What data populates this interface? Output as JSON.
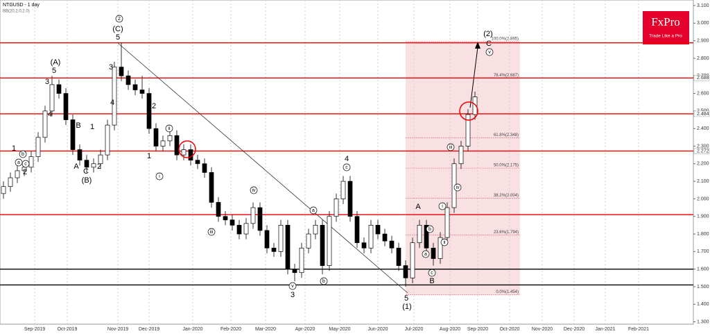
{
  "chart_data": {
    "type": "candlestick",
    "title": "NTGUSD - 1 day",
    "indicator": "BB(20,2.0,2.0)",
    "brand": {
      "name": "FxPro",
      "tagline": "Trade Like a Pro"
    },
    "x_labels": [
      "Sep-2019",
      "Oct-2019",
      "Nov-2019",
      "Dec-2019",
      "Jan-2020",
      "Feb-2020",
      "Mar-2020",
      "Apr-2020",
      "May-2020",
      "Jun-2020",
      "Jul-2020",
      "Aug-2020",
      "Sep-2020",
      "Oct-2020",
      "Nov-2020",
      "Dec-2020",
      "Jan-2021",
      "Feb-2021"
    ],
    "ylim": [
      1.2865,
      3.1317
    ],
    "yticks": [
      {
        "value": 1.3,
        "label": "1.300"
      },
      {
        "value": 1.4,
        "label": "1.400"
      },
      {
        "value": 1.5,
        "label": "1.500"
      },
      {
        "value": 1.6,
        "label": "1.600"
      },
      {
        "value": 1.7,
        "label": "1.700"
      },
      {
        "value": 1.8,
        "label": "1.800"
      },
      {
        "value": 1.9,
        "label": "1.900"
      },
      {
        "value": 2.0,
        "label": "2.000"
      },
      {
        "value": 2.1,
        "label": "2.100"
      },
      {
        "value": 2.2,
        "label": "2.200"
      },
      {
        "value": 2.3,
        "label": "2.300"
      },
      {
        "value": 2.4,
        "label": "2.400"
      },
      {
        "value": 2.5,
        "label": "2.500"
      },
      {
        "value": 2.6,
        "label": "2.600"
      },
      {
        "value": 2.7,
        "label": "2.700"
      },
      {
        "value": 2.8,
        "label": "2.800"
      },
      {
        "value": 2.9,
        "label": "2.900"
      },
      {
        "value": 3.0,
        "label": "3.000"
      },
      {
        "value": 3.1,
        "label": "3.100"
      }
    ],
    "open": [
      2.03,
      2.07,
      2.12,
      2.16,
      2.18,
      2.24,
      2.35,
      2.5,
      2.65,
      2.6,
      2.45,
      2.28,
      2.22,
      2.18,
      2.2,
      2.25,
      2.42,
      2.75,
      2.7,
      2.65,
      2.62,
      2.6,
      2.4,
      2.3,
      2.33,
      2.36,
      2.25,
      2.28,
      2.22,
      2.2,
      2.15,
      1.98,
      1.9,
      1.88,
      1.85,
      1.8,
      1.86,
      1.95,
      1.82,
      1.72,
      1.7,
      1.85,
      1.6,
      1.58,
      1.72,
      1.8,
      1.85,
      1.62,
      1.9,
      2.0,
      2.1,
      1.9,
      1.75,
      1.72,
      1.85,
      1.8,
      1.76,
      1.72,
      1.62,
      1.55,
      1.75,
      1.85,
      1.72,
      1.66,
      1.78,
      1.95,
      2.2,
      2.3,
      2.48
    ],
    "high": [
      2.1,
      2.15,
      2.19,
      2.21,
      2.27,
      2.38,
      2.53,
      2.7,
      2.68,
      2.63,
      2.48,
      2.31,
      2.25,
      2.23,
      2.28,
      2.45,
      2.78,
      2.89,
      2.73,
      2.68,
      2.7,
      2.63,
      2.43,
      2.36,
      2.39,
      2.39,
      2.31,
      2.31,
      2.25,
      2.23,
      2.18,
      2.01,
      1.93,
      1.91,
      1.88,
      1.89,
      1.98,
      1.98,
      1.85,
      1.75,
      1.88,
      1.88,
      1.63,
      1.75,
      1.83,
      1.88,
      1.88,
      1.93,
      2.03,
      2.13,
      2.13,
      1.93,
      1.78,
      1.88,
      1.88,
      1.83,
      1.79,
      1.75,
      1.65,
      1.78,
      1.88,
      1.88,
      1.75,
      1.81,
      1.98,
      2.23,
      2.33,
      2.51,
      2.61
    ],
    "low": [
      2.0,
      2.04,
      2.09,
      2.13,
      2.15,
      2.21,
      2.32,
      2.47,
      2.57,
      2.42,
      2.25,
      2.19,
      2.15,
      2.15,
      2.17,
      2.22,
      2.39,
      2.67,
      2.62,
      2.59,
      2.57,
      2.37,
      2.27,
      2.27,
      2.3,
      2.22,
      2.22,
      2.19,
      2.17,
      2.12,
      1.95,
      1.87,
      1.85,
      1.82,
      1.77,
      1.77,
      1.83,
      1.79,
      1.69,
      1.67,
      1.67,
      1.57,
      1.53,
      1.55,
      1.69,
      1.77,
      1.57,
      1.59,
      1.87,
      1.97,
      1.87,
      1.72,
      1.69,
      1.69,
      1.77,
      1.73,
      1.69,
      1.59,
      1.5,
      1.52,
      1.72,
      1.69,
      1.62,
      1.63,
      1.75,
      1.92,
      2.17,
      2.27,
      2.45
    ],
    "close": [
      2.07,
      2.12,
      2.16,
      2.18,
      2.24,
      2.35,
      2.5,
      2.65,
      2.6,
      2.45,
      2.28,
      2.22,
      2.18,
      2.2,
      2.25,
      2.42,
      2.75,
      2.7,
      2.65,
      2.62,
      2.6,
      2.4,
      2.3,
      2.33,
      2.36,
      2.25,
      2.28,
      2.22,
      2.2,
      2.15,
      1.98,
      1.9,
      1.88,
      1.85,
      1.8,
      1.86,
      1.95,
      1.82,
      1.72,
      1.7,
      1.85,
      1.6,
      1.58,
      1.72,
      1.8,
      1.85,
      1.62,
      1.9,
      2.0,
      2.1,
      1.9,
      1.75,
      1.72,
      1.85,
      1.8,
      1.76,
      1.72,
      1.62,
      1.55,
      1.75,
      1.85,
      1.72,
      1.66,
      1.78,
      1.95,
      2.2,
      2.3,
      2.48,
      2.58
    ],
    "red_levels": [
      2.888,
      2.688,
      2.484,
      2.272,
      1.91
    ],
    "black_levels": [
      1.6,
      1.51
    ],
    "price_tags": [
      2.688,
      2.484,
      2.272
    ],
    "fib_levels": [
      {
        "value": 2.895,
        "label": "100.0%(2.895)"
      },
      {
        "value": 2.687,
        "label": "76.4%(2.687)"
      },
      {
        "value": 2.348,
        "label": "61.8%(2.348)"
      },
      {
        "value": 2.175,
        "label": "50.0%(2.175)"
      },
      {
        "value": 2.004,
        "label": "38.2%(2.004)"
      },
      {
        "value": 1.794,
        "label": "23.6%(1.794)"
      },
      {
        "value": 1.454,
        "label": "0.0%(1.454)"
      }
    ],
    "annotations": [
      "2",
      "(C)",
      "5",
      "(A)",
      "5",
      "3",
      "3",
      "4",
      "4",
      "1",
      "b",
      "a",
      "c",
      "2",
      "B",
      "1",
      "1",
      "A",
      "C",
      "2",
      "(B)",
      "2",
      "ii",
      "1",
      "i",
      "iv",
      "iii",
      "4",
      "c",
      "a",
      "v",
      "b",
      "3",
      "5",
      "(1)",
      "A",
      "b",
      "a",
      "c",
      "B",
      "ii",
      "i",
      "iii",
      "iv",
      "(2)",
      "C",
      "v"
    ]
  }
}
